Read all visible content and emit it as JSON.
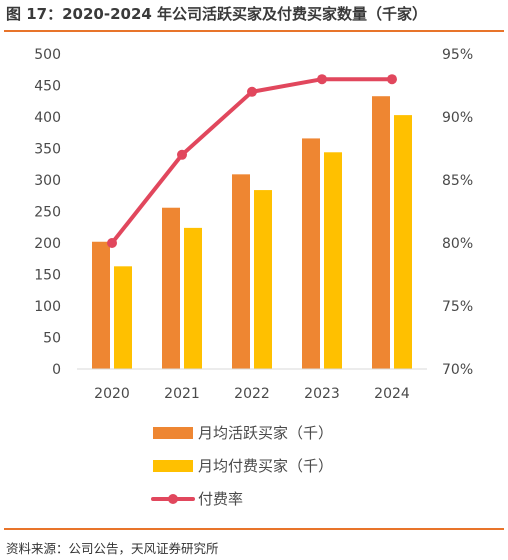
{
  "title": "图 17：2020-2024 年公司活跃买家及付费买家数量（千家）",
  "source": "资料来源：公司公告，天风证券研究所",
  "colors": {
    "active": "#ee8632",
    "paying": "#ffc000",
    "rate": "#e1475d",
    "rule": "#e8742a"
  },
  "chart_data": {
    "type": "bar",
    "categories": [
      "2020",
      "2021",
      "2022",
      "2023",
      "2024"
    ],
    "series": [
      {
        "name": "月均活跃买家（千）",
        "type": "bar",
        "axis": "left",
        "values": [
          202,
          256,
          309,
          366,
          433
        ]
      },
      {
        "name": "月均付费买家（千）",
        "type": "bar",
        "axis": "left",
        "values": [
          163,
          224,
          284,
          344,
          403
        ]
      },
      {
        "name": "付费率",
        "type": "line",
        "axis": "right",
        "values": [
          80,
          87,
          92,
          93,
          93
        ]
      }
    ],
    "y_left": {
      "min": 0,
      "max": 500,
      "step": 50,
      "ticks": [
        "0",
        "50",
        "100",
        "150",
        "200",
        "250",
        "300",
        "350",
        "400",
        "450",
        "500"
      ]
    },
    "y_right": {
      "min": 70,
      "max": 95,
      "step": 5,
      "ticks": [
        "70%",
        "75%",
        "80%",
        "85%",
        "90%",
        "95%"
      ]
    },
    "grid": false,
    "legend_position": "bottom"
  }
}
